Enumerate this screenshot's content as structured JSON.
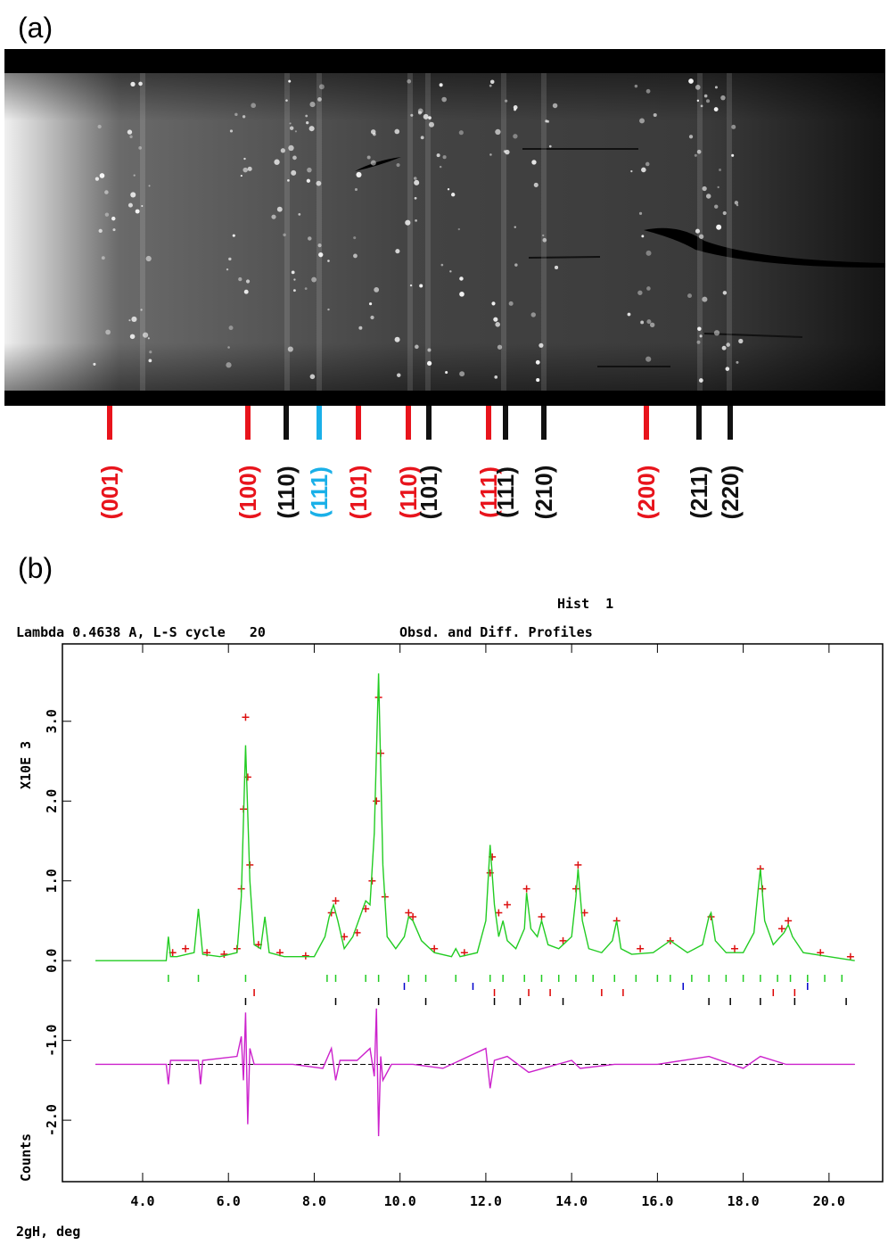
{
  "panel_a": {
    "label": "(a)",
    "reflections": [
      {
        "label": "(001)",
        "color": "#e8141c"
      },
      {
        "label": "(100)",
        "color": "#e8141c"
      },
      {
        "label": "(110)",
        "color": "#111111"
      },
      {
        "label": "(111)",
        "color": "#1ab0e8"
      },
      {
        "label": "(101)",
        "color": "#e8141c"
      },
      {
        "label": "(110)",
        "color": "#e8141c"
      },
      {
        "label": "(101)",
        "color": "#111111"
      },
      {
        "label": "(111)",
        "color": "#e8141c"
      },
      {
        "label": "(111)",
        "color": "#111111"
      },
      {
        "label": "(210)",
        "color": "#111111"
      },
      {
        "label": "(200)",
        "color": "#e8141c"
      },
      {
        "label": "(211)",
        "color": "#111111"
      },
      {
        "label": "(220)",
        "color": "#111111"
      }
    ]
  },
  "panel_b": {
    "label": "(b)"
  },
  "chart_data": {
    "type": "profile",
    "annotation": "Hist  1",
    "subtitle": "Lambda 0.4638 A, L-S cycle   20",
    "title": "Obsd. and Diff. Profiles",
    "xlabel": "2gH, deg",
    "ylabel": "X10E 3",
    "ylabel2": "Counts",
    "xlim": [
      2.13,
      21.25
    ],
    "xticks": [
      {
        "value": 4,
        "label": "4.0"
      },
      {
        "value": 6,
        "label": "6.0"
      },
      {
        "value": 8,
        "label": "8.0"
      },
      {
        "value": 10,
        "label": "10.0"
      },
      {
        "value": 12,
        "label": "12.0"
      },
      {
        "value": 14,
        "label": "14.0"
      },
      {
        "value": 16,
        "label": "16.0"
      },
      {
        "value": 18,
        "label": "18.0"
      },
      {
        "value": 20,
        "label": "20.0"
      }
    ],
    "ylim": [
      -2.77,
      3.97
    ],
    "yticks": [
      {
        "value": -2,
        "label": "-2.0"
      },
      {
        "value": -1,
        "label": "-1.0"
      },
      {
        "value": 0,
        "label": "0.0"
      },
      {
        "value": 1,
        "label": "1.0"
      },
      {
        "value": 2,
        "label": "2.0"
      },
      {
        "value": 3,
        "label": "3.0"
      }
    ],
    "diff_baseline": -1.3,
    "series": [
      {
        "color": "#dd1111",
        "marker": "+",
        "x": [
          4.7,
          5.0,
          5.5,
          5.9,
          6.2,
          6.3,
          6.35,
          6.4,
          6.45,
          6.5,
          6.7,
          7.2,
          7.8,
          8.4,
          8.5,
          8.7,
          9.0,
          9.2,
          9.35,
          9.45,
          9.5,
          9.55,
          9.65,
          10.2,
          10.3,
          10.8,
          11.5,
          12.1,
          12.15,
          12.3,
          12.5,
          12.95,
          13.3,
          13.8,
          14.1,
          14.15,
          14.3,
          15.05,
          15.6,
          16.3,
          17.25,
          17.8,
          18.4,
          18.45,
          18.9,
          19.05,
          19.8,
          20.5
        ],
        "values": [
          0.1,
          0.15,
          0.1,
          0.08,
          0.15,
          0.9,
          1.9,
          3.05,
          2.3,
          1.2,
          0.2,
          0.1,
          0.06,
          0.6,
          0.75,
          0.3,
          0.35,
          0.65,
          1.0,
          2.0,
          3.3,
          2.6,
          0.8,
          0.6,
          0.55,
          0.15,
          0.1,
          1.1,
          1.3,
          0.6,
          0.7,
          0.9,
          0.55,
          0.25,
          0.9,
          1.2,
          0.6,
          0.5,
          0.15,
          0.25,
          0.55,
          0.15,
          1.15,
          0.9,
          0.4,
          0.5,
          0.1,
          0.05
        ]
      },
      {
        "color": "#22cc22",
        "marker": "line",
        "x": [
          2.9,
          4.55,
          4.6,
          4.65,
          4.8,
          5.2,
          5.3,
          5.4,
          5.8,
          6.2,
          6.3,
          6.4,
          6.5,
          6.6,
          6.75,
          6.85,
          6.95,
          7.3,
          8.0,
          8.25,
          8.35,
          8.45,
          8.55,
          8.7,
          8.9,
          9.1,
          9.2,
          9.3,
          9.4,
          9.5,
          9.6,
          9.7,
          9.9,
          10.1,
          10.2,
          10.3,
          10.5,
          10.8,
          11.2,
          11.3,
          11.4,
          11.8,
          12.0,
          12.1,
          12.2,
          12.3,
          12.4,
          12.5,
          12.7,
          12.9,
          12.95,
          13.05,
          13.2,
          13.3,
          13.45,
          13.7,
          14.0,
          14.1,
          14.15,
          14.25,
          14.4,
          14.7,
          14.95,
          15.05,
          15.15,
          15.4,
          15.9,
          16.3,
          16.7,
          17.05,
          17.2,
          17.25,
          17.35,
          17.6,
          18.0,
          18.25,
          18.35,
          18.4,
          18.5,
          18.7,
          18.95,
          19.05,
          19.15,
          19.4,
          20.0,
          20.6
        ],
        "values": [
          0.0,
          0.0,
          0.3,
          0.05,
          0.05,
          0.1,
          0.65,
          0.08,
          0.05,
          0.1,
          0.8,
          2.7,
          1.0,
          0.2,
          0.15,
          0.55,
          0.1,
          0.05,
          0.05,
          0.3,
          0.55,
          0.7,
          0.5,
          0.15,
          0.3,
          0.6,
          0.75,
          0.7,
          1.6,
          3.6,
          1.2,
          0.3,
          0.15,
          0.3,
          0.55,
          0.5,
          0.25,
          0.1,
          0.05,
          0.15,
          0.05,
          0.1,
          0.5,
          1.45,
          0.7,
          0.3,
          0.5,
          0.25,
          0.15,
          0.4,
          0.85,
          0.4,
          0.3,
          0.5,
          0.2,
          0.15,
          0.3,
          0.8,
          1.15,
          0.5,
          0.15,
          0.1,
          0.25,
          0.5,
          0.15,
          0.08,
          0.1,
          0.25,
          0.1,
          0.2,
          0.55,
          0.6,
          0.25,
          0.1,
          0.1,
          0.35,
          0.9,
          1.15,
          0.5,
          0.2,
          0.35,
          0.45,
          0.3,
          0.1,
          0.05,
          0.0
        ]
      },
      {
        "color": "#cc22cc",
        "marker": "line",
        "x": [
          2.9,
          4.55,
          4.6,
          4.65,
          5.3,
          5.35,
          5.4,
          6.2,
          6.3,
          6.35,
          6.4,
          6.45,
          6.5,
          6.6,
          7.5,
          8.2,
          8.4,
          8.5,
          8.6,
          9.0,
          9.3,
          9.4,
          9.45,
          9.5,
          9.55,
          9.6,
          9.8,
          10.3,
          11.0,
          12.0,
          12.1,
          12.2,
          12.5,
          13.0,
          14.0,
          14.2,
          15.0,
          16.0,
          17.2,
          18.0,
          18.4,
          19.0,
          20.6
        ],
        "values": [
          -1.3,
          -1.3,
          -1.55,
          -1.25,
          -1.25,
          -1.55,
          -1.25,
          -1.2,
          -0.95,
          -1.5,
          -0.65,
          -2.05,
          -1.1,
          -1.3,
          -1.3,
          -1.35,
          -1.1,
          -1.5,
          -1.25,
          -1.25,
          -1.1,
          -1.45,
          -0.6,
          -2.2,
          -1.2,
          -1.5,
          -1.3,
          -1.3,
          -1.35,
          -1.1,
          -1.6,
          -1.25,
          -1.2,
          -1.4,
          -1.25,
          -1.35,
          -1.3,
          -1.3,
          -1.2,
          -1.35,
          -1.2,
          -1.3,
          -1.3
        ]
      }
    ],
    "tick_rows": [
      {
        "color": "#22cc22",
        "x": [
          4.6,
          5.3,
          6.4,
          8.3,
          8.5,
          9.2,
          9.5,
          10.2,
          10.6,
          11.3,
          12.1,
          12.4,
          12.9,
          13.3,
          13.7,
          14.1,
          14.5,
          15.0,
          15.5,
          16.0,
          16.3,
          16.8,
          17.2,
          17.6,
          18.0,
          18.4,
          18.8,
          19.1,
          19.5,
          19.9,
          20.3
        ]
      },
      {
        "color": "#0000cc",
        "x": [
          10.1,
          11.7,
          16.6,
          19.5
        ]
      },
      {
        "color": "#dd0000",
        "x": [
          6.6,
          12.2,
          13.0,
          13.5,
          14.7,
          15.2,
          18.7,
          19.2
        ]
      },
      {
        "color": "#000000",
        "x": [
          6.4,
          8.5,
          9.5,
          10.6,
          12.2,
          12.8,
          13.8,
          17.2,
          17.7,
          18.4,
          19.2,
          20.4
        ]
      }
    ]
  }
}
